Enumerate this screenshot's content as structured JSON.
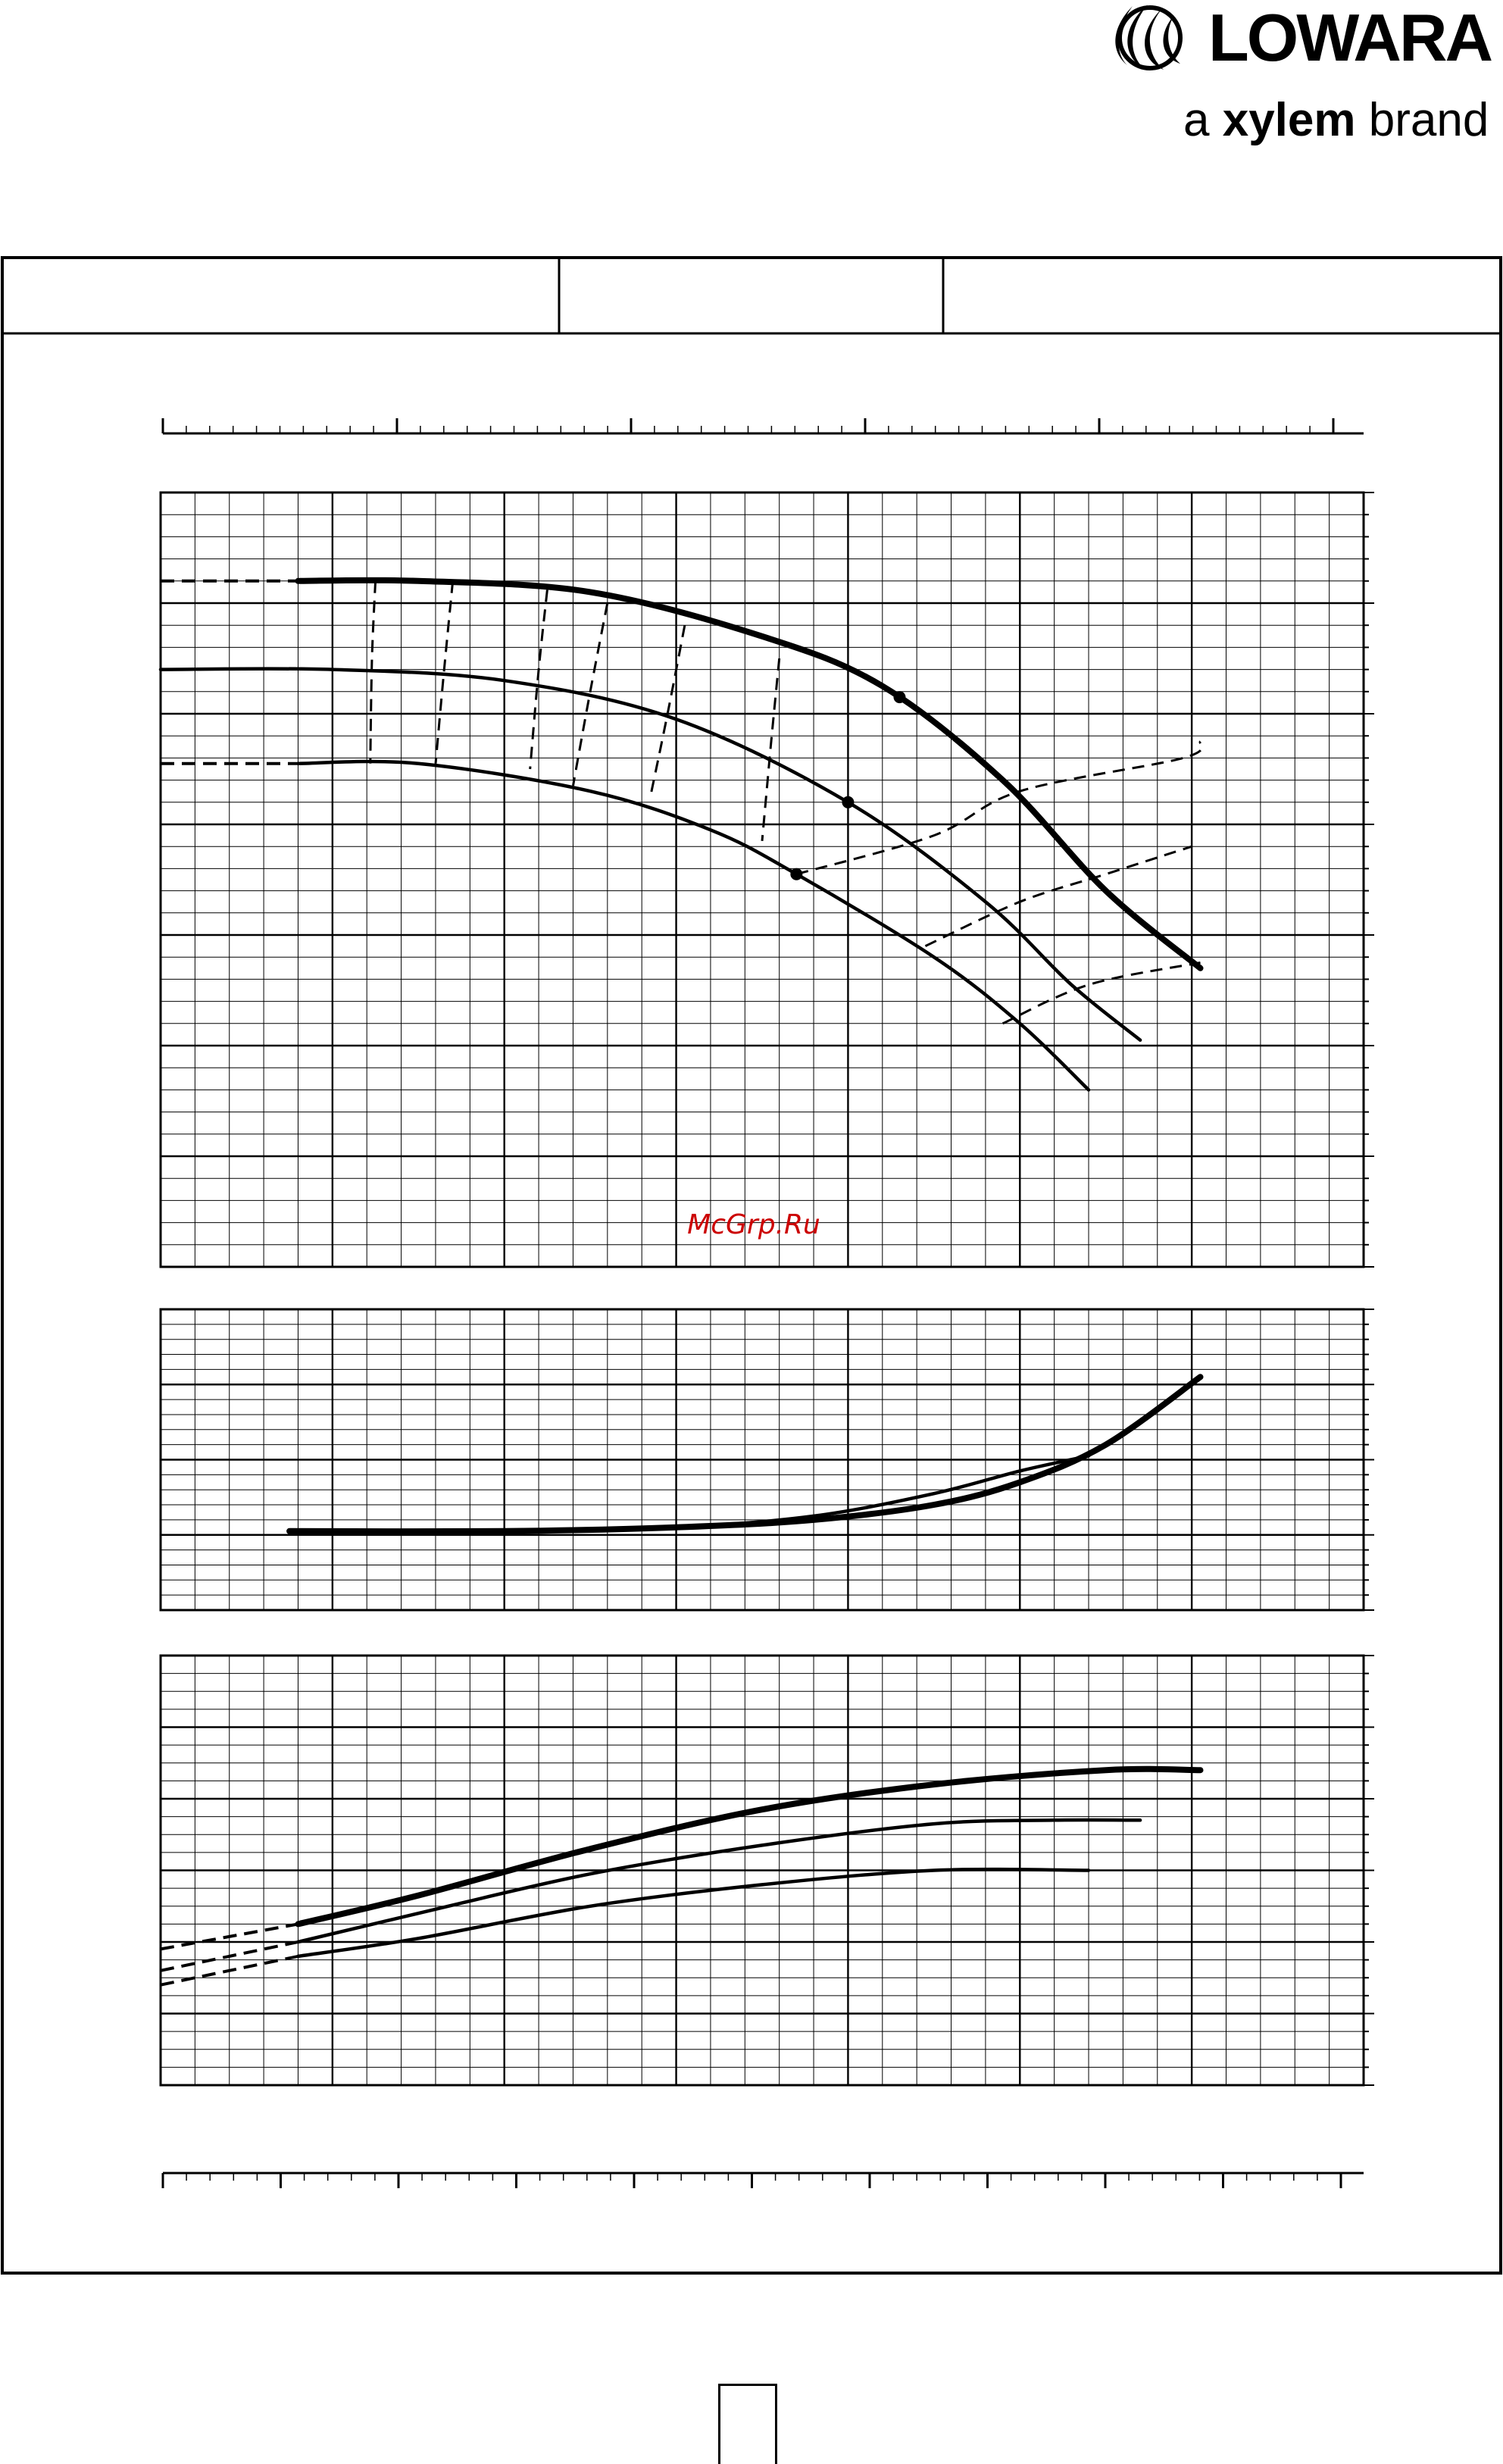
{
  "brand": {
    "name": "LOWARA",
    "tagline_prefix": "a ",
    "tagline_brand": "xylem",
    "tagline_suffix": " brand"
  },
  "watermark": "McGrp.Ru",
  "header_cells": [
    "",
    "",
    ""
  ],
  "page_number": "",
  "colors": {
    "ink": "#000000",
    "watermark": "#cc0000",
    "background": "#ffffff"
  },
  "chart_data": [
    {
      "type": "line",
      "panel": "head-capacity",
      "title": "",
      "xlabel": "",
      "ylabel": "",
      "xlim": [
        0,
        7
      ],
      "ylim": [
        0,
        7
      ],
      "grid": true,
      "series": [
        {
          "line": "heavy",
          "x": [
            0.8,
            1.5,
            2.5,
            3.5,
            4.2,
            4.9,
            5.5,
            6.05
          ],
          "y": [
            6.2,
            6.2,
            6.1,
            5.7,
            5.25,
            4.4,
            3.4,
            2.7
          ]
        },
        {
          "line": "medium",
          "x": [
            0.0,
            1.0,
            2.0,
            3.0,
            4.0,
            4.8,
            5.3,
            5.7
          ],
          "y": [
            5.4,
            5.4,
            5.3,
            4.95,
            4.2,
            3.3,
            2.55,
            2.05
          ]
        },
        {
          "line": "medium",
          "x": [
            0.8,
            1.5,
            2.5,
            3.2,
            3.7,
            4.5,
            5.0,
            5.4
          ],
          "y": [
            4.55,
            4.55,
            4.3,
            3.95,
            3.55,
            2.8,
            2.2,
            1.6
          ]
        }
      ],
      "extrapolations_dashed": [
        {
          "x": [
            0.0,
            0.8
          ],
          "y": [
            6.2,
            6.2
          ]
        },
        {
          "x": [
            0.0,
            0.8
          ],
          "y": [
            4.55,
            4.55
          ]
        }
      ],
      "iso_lines_dashed": [
        {
          "x": [
            1.25,
            1.23,
            1.22
          ],
          "y": [
            6.2,
            5.5,
            4.55
          ]
        },
        {
          "x": [
            1.7,
            1.65,
            1.6
          ],
          "y": [
            6.2,
            5.4,
            4.55
          ]
        },
        {
          "x": [
            2.25,
            2.2,
            2.15
          ],
          "y": [
            6.12,
            5.4,
            4.5
          ]
        },
        {
          "x": [
            2.6,
            2.5,
            2.4
          ],
          "y": [
            6.0,
            5.2,
            4.35
          ]
        },
        {
          "x": [
            3.05,
            2.95,
            2.85
          ],
          "y": [
            5.8,
            5.0,
            4.25
          ]
        },
        {
          "x": [
            3.6,
            3.55,
            3.5
          ],
          "y": [
            5.5,
            4.7,
            3.85
          ]
        },
        {
          "x": [
            3.7,
            4.5,
            5.0,
            5.95,
            6.05
          ],
          "y": [
            3.55,
            3.9,
            4.3,
            4.6,
            4.75
          ]
        },
        {
          "x": [
            4.45,
            5.0,
            5.5,
            6.0
          ],
          "y": [
            2.9,
            3.3,
            3.55,
            3.8
          ]
        },
        {
          "x": [
            4.9,
            5.4,
            6.05
          ],
          "y": [
            2.2,
            2.55,
            2.75
          ]
        }
      ],
      "markers": [
        {
          "x": 4.3,
          "y": 5.15
        },
        {
          "x": 4.0,
          "y": 4.2
        },
        {
          "x": 3.7,
          "y": 3.55
        }
      ]
    },
    {
      "type": "line",
      "panel": "npsh",
      "title": "",
      "xlabel": "",
      "ylabel": "",
      "xlim": [
        0,
        7
      ],
      "ylim": [
        0,
        4
      ],
      "grid": true,
      "series": [
        {
          "line": "heavy",
          "x": [
            0.75,
            2.0,
            3.0,
            3.8,
            4.5,
            5.0,
            5.5,
            6.05
          ],
          "y": [
            1.05,
            1.05,
            1.1,
            1.2,
            1.4,
            1.7,
            2.2,
            3.1
          ]
        },
        {
          "line": "medium",
          "x": [
            0.75,
            2.0,
            3.0,
            3.8,
            4.5,
            5.0,
            5.4
          ],
          "y": [
            1.05,
            1.05,
            1.1,
            1.25,
            1.55,
            1.85,
            2.05
          ]
        }
      ]
    },
    {
      "type": "line",
      "panel": "power",
      "title": "",
      "xlabel": "",
      "ylabel": "",
      "xlim": [
        0,
        7
      ],
      "ylim": [
        0,
        6
      ],
      "grid": true,
      "series": [
        {
          "line": "heavy",
          "x": [
            0.8,
            1.5,
            2.5,
            3.5,
            4.5,
            5.5,
            6.05
          ],
          "y": [
            2.25,
            2.65,
            3.3,
            3.85,
            4.2,
            4.4,
            4.4
          ]
        },
        {
          "line": "medium",
          "x": [
            0.8,
            1.5,
            2.5,
            3.5,
            4.5,
            5.2,
            5.7
          ],
          "y": [
            2.0,
            2.4,
            2.95,
            3.35,
            3.65,
            3.7,
            3.7
          ]
        },
        {
          "line": "medium",
          "x": [
            0.8,
            1.5,
            2.5,
            3.5,
            4.5,
            5.4
          ],
          "y": [
            1.8,
            2.05,
            2.5,
            2.8,
            3.0,
            3.0
          ]
        }
      ],
      "extrapolations_dashed": [
        {
          "x": [
            0.0,
            0.8
          ],
          "y": [
            1.9,
            2.25
          ]
        },
        {
          "x": [
            0.0,
            0.8
          ],
          "y": [
            1.6,
            2.0
          ]
        },
        {
          "x": [
            0.0,
            0.8
          ],
          "y": [
            1.4,
            1.8
          ]
        }
      ]
    }
  ]
}
